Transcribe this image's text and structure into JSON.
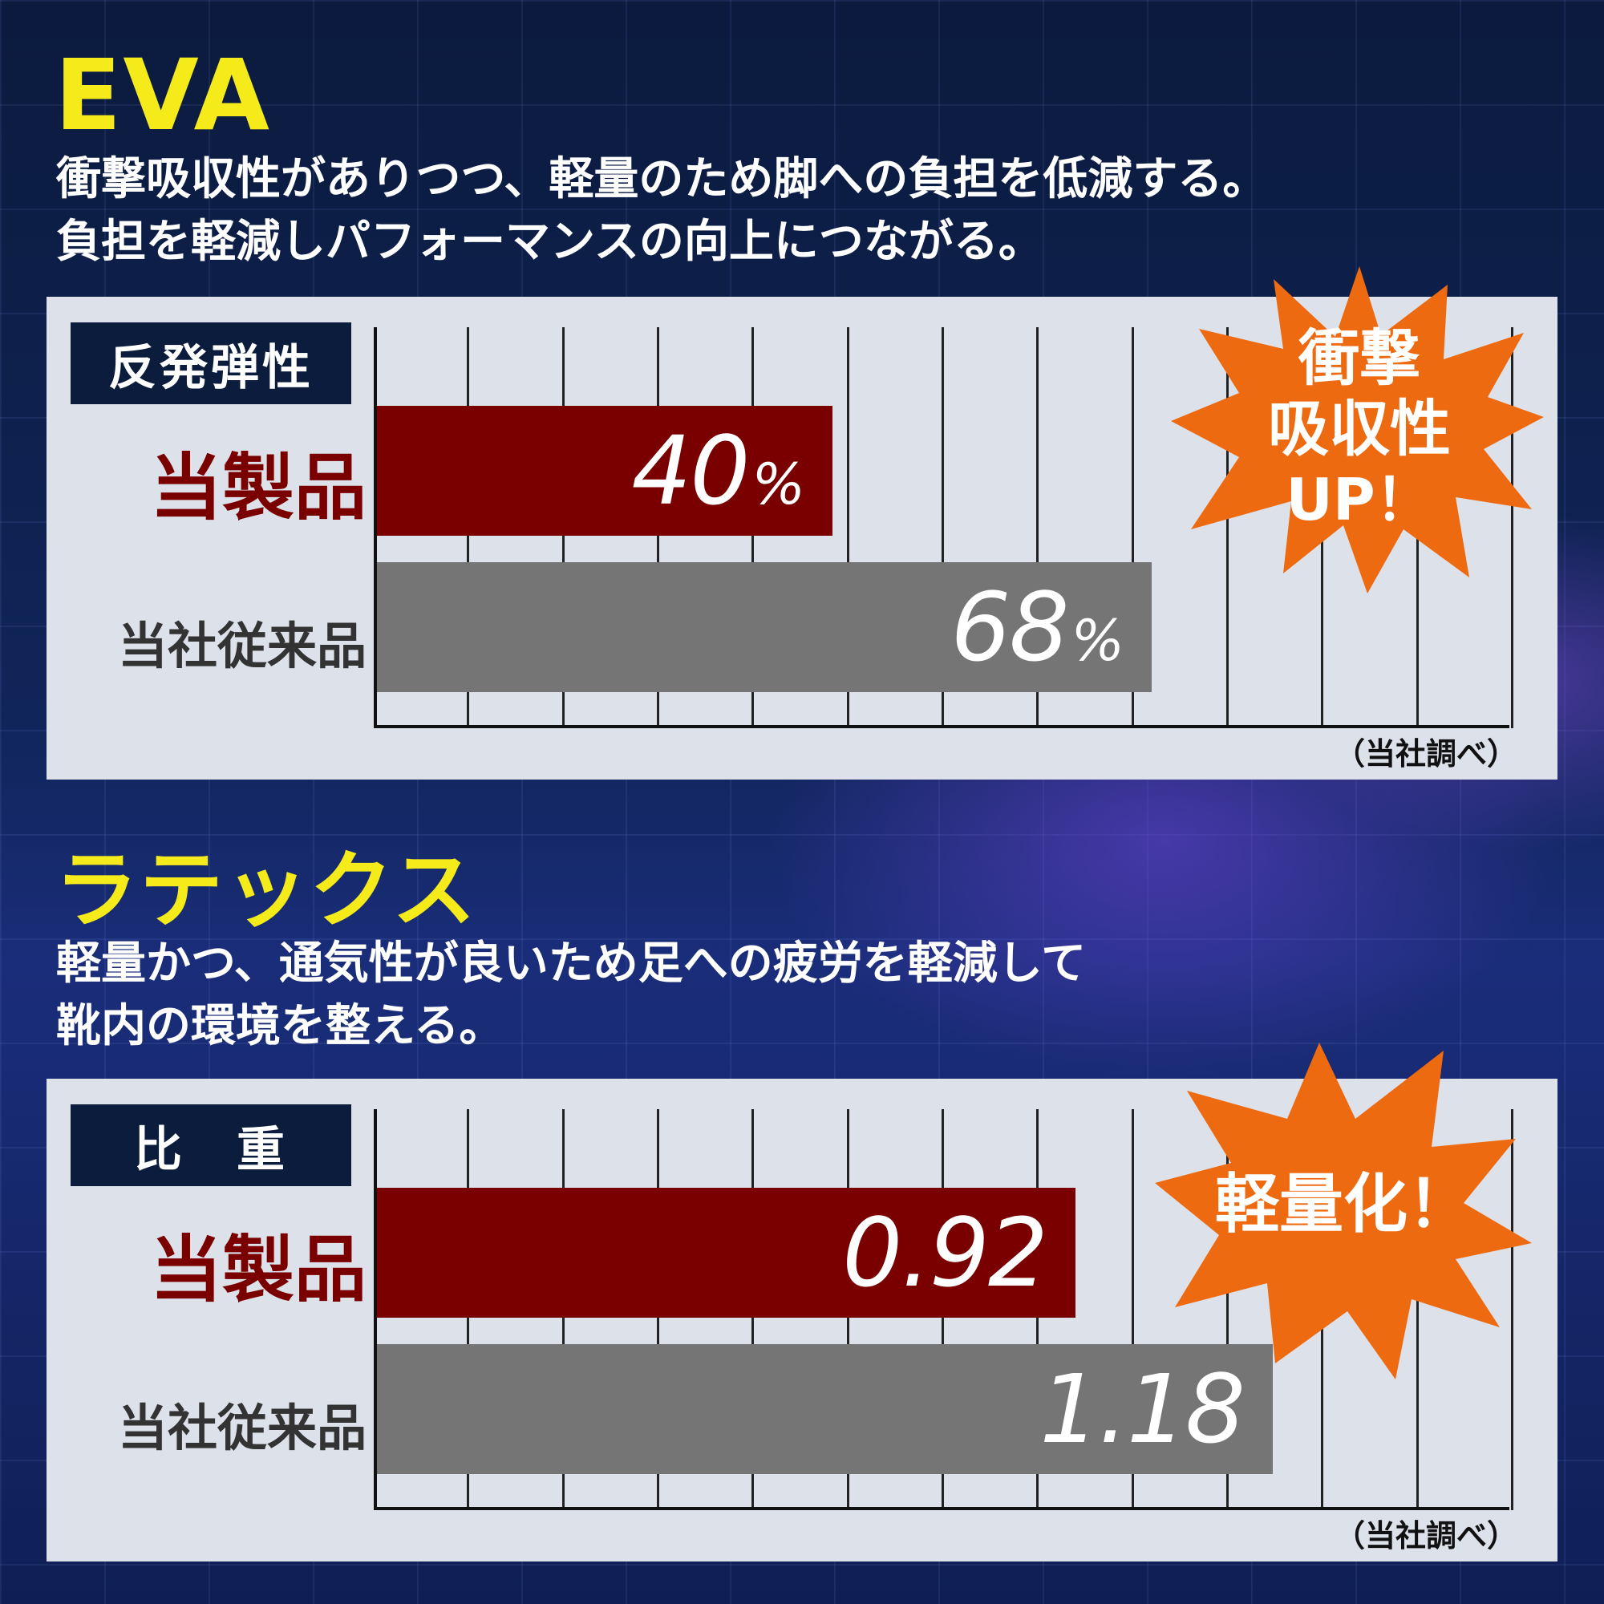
{
  "sections": [
    {
      "heading": "EVA",
      "description": [
        "衝撃吸収性がありつつ、軽量のため脚への負担を低減する。",
        "負担を軽減しパフォーマンスの向上につながる。"
      ],
      "metric": "反発弾性",
      "product_label": "当製品",
      "conventional_label": "当社従来品",
      "product_value": "40",
      "product_unit": "%",
      "conventional_value": "68",
      "conventional_unit": "%",
      "burst": [
        "衝撃",
        "吸収性",
        "UP！"
      ],
      "source_note": "（当社調べ）"
    },
    {
      "heading": "ラテックス",
      "description": [
        "軽量かつ、通気性が良いため足への疲労を軽減して",
        "靴内の環境を整える。"
      ],
      "metric": "比　重",
      "product_label": "当製品",
      "conventional_label": "当社従来品",
      "product_value": "0.92",
      "conventional_value": "1.18",
      "burst": [
        "軽量化！"
      ],
      "source_note": "（当社調べ）"
    }
  ],
  "colors": {
    "heading": "#f5eb1a",
    "product_bar": "#7a0000",
    "conventional_bar": "#757575",
    "burst": "#ee6a10",
    "metric_box": "#0b1c3c",
    "panel": "#dde1e9"
  },
  "chart_data": [
    {
      "type": "bar",
      "orientation": "horizontal",
      "title": "反発弾性",
      "categories": [
        "当製品",
        "当社従来品"
      ],
      "values": [
        40,
        68
      ],
      "xlim": [
        0,
        100
      ],
      "grid": true
    },
    {
      "type": "bar",
      "orientation": "horizontal",
      "title": "比　重",
      "categories": [
        "当製品",
        "当社従来品"
      ],
      "values": [
        0.92,
        1.18
      ],
      "xlim": [
        0,
        1.5
      ],
      "grid": true
    }
  ]
}
